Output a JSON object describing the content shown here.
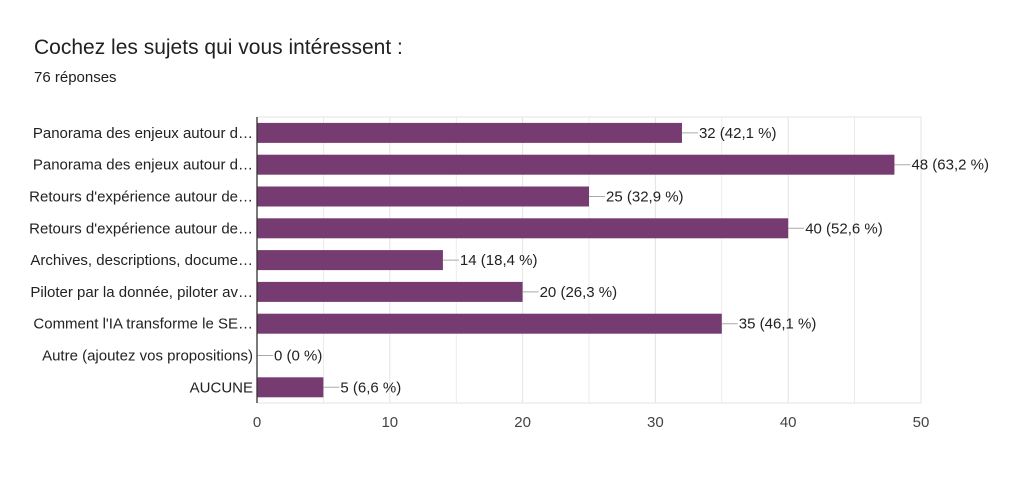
{
  "header": {
    "title": "Cochez les sujets qui vous intéressent :",
    "response_count": "76 réponses"
  },
  "colors": {
    "bar": "#763c71",
    "grid": "#e3e3e3",
    "axis": "#333333"
  },
  "chart_data": {
    "type": "bar",
    "orientation": "horizontal",
    "categories": [
      "Panorama des enjeux autour d…",
      "Panorama des enjeux autour d…",
      "Retours d'expérience autour de…",
      "Retours d'expérience autour de…",
      "Archives, descriptions, docume…",
      "Piloter par la donnée, piloter av…",
      "Comment l'IA transforme le SE…",
      "Autre (ajoutez vos propositions)",
      "AUCUNE"
    ],
    "values": [
      32,
      48,
      25,
      40,
      14,
      20,
      35,
      0,
      5
    ],
    "data_labels": [
      "32 (42,1 %)",
      "48 (63,2 %)",
      "25 (32,9 %)",
      "40 (52,6 %)",
      "14 (18,4 %)",
      "20 (26,3 %)",
      "35 (46,1 %)",
      "0 (0 %)",
      "5 (6,6 %)"
    ],
    "xlim": [
      0,
      50
    ],
    "xticks": [
      0,
      10,
      20,
      30,
      40,
      50
    ],
    "grid": true
  }
}
